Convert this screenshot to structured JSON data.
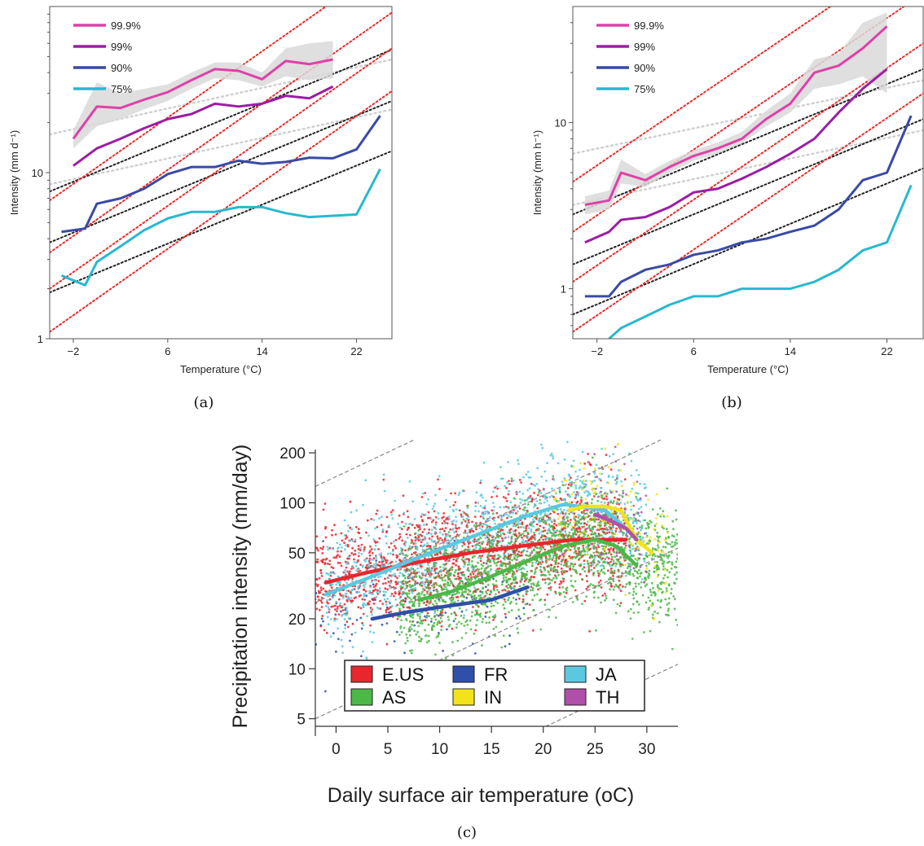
{
  "captions": {
    "a": "(a)",
    "b": "(b)",
    "c": "(c)"
  },
  "chart_data": [
    {
      "id": "a",
      "type": "line",
      "xlabel": "Temperature (°C)",
      "ylabel": "Intensity (mm d⁻¹)",
      "xlim": [
        -4,
        25
      ],
      "ylim": [
        1,
        100
      ],
      "log_y": true,
      "xticks": [
        -2,
        6,
        14,
        22
      ],
      "xtick_labels": [
        "−2",
        "6",
        "14",
        "22"
      ],
      "yticks": [
        1,
        10
      ],
      "ytick_labels": [
        "1",
        "10"
      ],
      "legend": {
        "position": "top-left"
      },
      "series": [
        {
          "name": "99.9%",
          "color": "#e040a8",
          "x": [
            -2,
            0,
            2,
            4,
            6,
            8,
            10,
            12,
            14,
            16,
            18,
            20
          ],
          "y": [
            16,
            25,
            24.5,
            27.5,
            30.5,
            36,
            42,
            41,
            36.5,
            47,
            45,
            48
          ],
          "band_low": [
            14,
            19,
            21,
            24,
            27,
            32,
            37,
            36,
            33,
            38,
            36,
            37
          ],
          "band_high": [
            18,
            35,
            30,
            32,
            34,
            40,
            46,
            46,
            40,
            56,
            60,
            62
          ]
        },
        {
          "name": "99%",
          "color": "#9b1ea3",
          "x": [
            -2,
            0,
            2,
            4,
            6,
            8,
            10,
            12,
            14,
            16,
            18,
            20
          ],
          "y": [
            11,
            14,
            16,
            18.5,
            21,
            22.5,
            26,
            25,
            26,
            29,
            28,
            33
          ]
        },
        {
          "name": "90%",
          "color": "#3a4aa5",
          "x": [
            -3,
            -1,
            0,
            2,
            4,
            6,
            8,
            10,
            12,
            14,
            16,
            18,
            20,
            22,
            24
          ],
          "y": [
            4.4,
            4.6,
            6.5,
            7,
            8,
            9.8,
            10.8,
            10.8,
            11.8,
            11.3,
            11.6,
            12.3,
            12.2,
            13.8,
            22
          ]
        },
        {
          "name": "75%",
          "color": "#29b8d0",
          "x": [
            -3,
            -1,
            0,
            2,
            4,
            6,
            8,
            10,
            12,
            14,
            16,
            18,
            20,
            22,
            24
          ],
          "y": [
            2.4,
            2.1,
            2.9,
            3.6,
            4.5,
            5.3,
            5.8,
            5.8,
            6.2,
            6.2,
            5.7,
            5.4,
            5.5,
            5.6,
            10.5
          ]
        }
      ],
      "reference_lines": {
        "red_dotted": [
          [
            -4,
            1.1,
            25,
            31
          ],
          [
            -4,
            2.0,
            25,
            56
          ],
          [
            -4,
            3.3,
            25,
            92
          ],
          [
            -4,
            6.8,
            25,
            190
          ]
        ],
        "black_dotted": [
          [
            -4,
            1.9,
            25,
            13.5
          ],
          [
            -4,
            3.8,
            25,
            27
          ],
          [
            -4,
            7.7,
            25,
            55
          ]
        ],
        "gray_dotted": [
          [
            -4,
            8.5,
            25,
            24
          ],
          [
            -4,
            17,
            25,
            48
          ]
        ]
      }
    },
    {
      "id": "b",
      "type": "line",
      "xlabel": "Temperature (°C)",
      "ylabel": "Intensity (mm h⁻¹)",
      "xlim": [
        -4,
        25
      ],
      "ylim": [
        0.5,
        50
      ],
      "log_y": true,
      "xticks": [
        -2,
        6,
        14,
        22
      ],
      "xtick_labels": [
        "−2",
        "6",
        "14",
        "22"
      ],
      "yticks": [
        1,
        10
      ],
      "ytick_labels": [
        "1",
        "10"
      ],
      "legend": {
        "position": "top-left"
      },
      "series": [
        {
          "name": "99.9%",
          "color": "#e040a8",
          "x": [
            -3,
            -1,
            0,
            2,
            4,
            6,
            8,
            10,
            12,
            14,
            16,
            18,
            20,
            22
          ],
          "y": [
            3.2,
            3.4,
            5.0,
            4.5,
            5.4,
            6.3,
            7.0,
            8.0,
            10.5,
            13,
            20,
            22,
            28,
            38
          ],
          "band_low": [
            2.8,
            3.0,
            4.3,
            4.1,
            5.0,
            5.9,
            6.5,
            7.5,
            9.5,
            11.5,
            16,
            17,
            19,
            15
          ],
          "band_high": [
            3.6,
            3.9,
            6.0,
            4.9,
            5.9,
            6.8,
            7.6,
            8.8,
            11.8,
            15,
            24,
            26,
            40,
            46
          ]
        },
        {
          "name": "99%",
          "color": "#9b1ea3",
          "x": [
            -3,
            -1,
            0,
            2,
            4,
            6,
            8,
            10,
            12,
            14,
            16,
            18,
            20,
            22
          ],
          "y": [
            1.9,
            2.2,
            2.6,
            2.7,
            3.1,
            3.8,
            4.0,
            4.6,
            5.4,
            6.5,
            8.0,
            11.5,
            16,
            21
          ]
        },
        {
          "name": "90%",
          "color": "#3a4aa5",
          "x": [
            -3,
            -1,
            0,
            2,
            4,
            6,
            8,
            10,
            12,
            14,
            16,
            18,
            20,
            22,
            24
          ],
          "y": [
            0.9,
            0.9,
            1.1,
            1.3,
            1.4,
            1.6,
            1.7,
            1.9,
            2.0,
            2.2,
            2.4,
            3.0,
            4.5,
            5.0,
            11
          ]
        },
        {
          "name": "75%",
          "color": "#29b8d0",
          "x": [
            -1,
            0,
            2,
            4,
            6,
            8,
            10,
            12,
            14,
            16,
            18,
            20,
            22,
            24
          ],
          "y": [
            0.5,
            0.58,
            0.68,
            0.8,
            0.9,
            0.9,
            1.0,
            1.0,
            1.0,
            1.1,
            1.3,
            1.7,
            1.9,
            4.2
          ]
        }
      ],
      "reference_lines": {
        "red_dotted": [
          [
            -4,
            0.55,
            25,
            15
          ],
          [
            -4,
            1.1,
            25,
            30
          ],
          [
            -4,
            2.2,
            25,
            60
          ],
          [
            -4,
            4.4,
            25,
            120
          ]
        ],
        "black_dotted": [
          [
            -4,
            0.7,
            25,
            5.3
          ],
          [
            -4,
            1.4,
            25,
            10.5
          ],
          [
            -4,
            2.8,
            25,
            21
          ]
        ],
        "gray_dotted": [
          [
            -4,
            3.2,
            25,
            9
          ],
          [
            -4,
            6.5,
            25,
            18
          ]
        ]
      }
    },
    {
      "id": "c",
      "type": "scatter",
      "xlabel": "Daily surface air temperature (oC)",
      "ylabel": "Precipitation intensity (mm/day)",
      "xlim": [
        -2,
        33
      ],
      "ylim": [
        4.5,
        240
      ],
      "log_y": true,
      "xticks": [
        0,
        5,
        10,
        15,
        20,
        25,
        30
      ],
      "xtick_labels": [
        "0",
        "5",
        "10",
        "15",
        "20",
        "25",
        "30"
      ],
      "yticks": [
        5,
        10,
        20,
        50,
        100,
        200
      ],
      "ytick_labels": [
        "5",
        "10",
        "20",
        "50",
        "100",
        "200"
      ],
      "legend": {
        "position": "bottom-center",
        "columns": 3
      },
      "series": [
        {
          "name": "E.US",
          "color": "#e8262d",
          "x_range": [
            -2,
            28
          ],
          "curve": {
            "x": [
              -1,
              3,
              8,
              13,
              18,
              23,
              28
            ],
            "y": [
              33,
              38,
              44,
              50,
              55,
              60,
              60
            ]
          }
        },
        {
          "name": "AS",
          "color": "#4cb848",
          "x_range": [
            6,
            33
          ],
          "curve": {
            "x": [
              8,
              11,
              15,
              19,
              22,
              25,
              27,
              29
            ],
            "y": [
              26,
              29,
              36,
              46,
              55,
              60,
              55,
              42
            ]
          }
        },
        {
          "name": "FR",
          "color": "#2f4fa8",
          "x_range": [
            -2,
            19
          ],
          "curve": {
            "x": [
              3.5,
              7,
              11,
              15,
              18.5
            ],
            "y": [
              20,
              22,
              24,
              26,
              31
            ]
          }
        },
        {
          "name": "IN",
          "color": "#f2e31c",
          "x_range": [
            21,
            32
          ],
          "curve": {
            "x": [
              22.5,
              24,
              26,
              27.5,
              29,
              30.5
            ],
            "y": [
              90,
              95,
              95,
              90,
              60,
              50
            ]
          }
        },
        {
          "name": "JA",
          "color": "#5cc8e0",
          "x_range": [
            -1,
            30
          ],
          "curve": {
            "x": [
              -1,
              3,
              8,
              13,
              18,
              22,
              26,
              28
            ],
            "y": [
              28,
              35,
              47,
              62,
              82,
              98,
              90,
              70
            ]
          }
        },
        {
          "name": "TH",
          "color": "#b050a8",
          "x_range": [
            24,
            30
          ],
          "curve": {
            "x": [
              25,
              26.5,
              28,
              29
            ],
            "y": [
              85,
              78,
              70,
              60
            ]
          }
        }
      ],
      "reference_lines": {
        "gray_dotted_slope_7pct_per_K": [
          -1,
          0,
          1,
          2
        ]
      }
    }
  ]
}
